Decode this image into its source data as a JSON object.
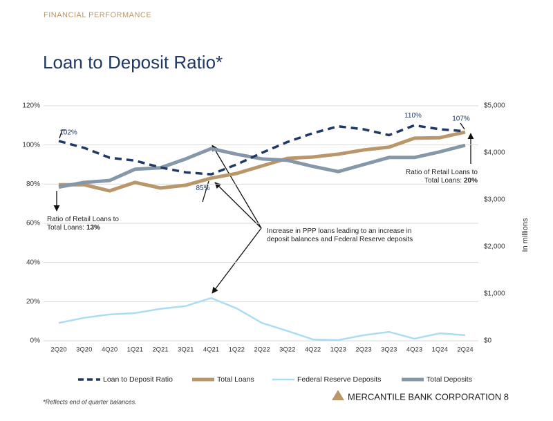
{
  "header": "FINANCIAL PERFORMANCE",
  "title": "Loan to Deposit Ratio*",
  "footnote": "*Reflects end of quarter balances.",
  "company": "MERCANTILE BANK CORPORATION",
  "page_number": "8",
  "chart_data": {
    "type": "line",
    "categories": [
      "2Q20",
      "3Q20",
      "4Q20",
      "1Q21",
      "2Q21",
      "3Q21",
      "4Q21",
      "1Q22",
      "2Q22",
      "3Q22",
      "4Q22",
      "1Q23",
      "2Q23",
      "3Q23",
      "4Q23",
      "1Q24",
      "2Q24"
    ],
    "ylim": [
      0,
      120
    ],
    "yticks": [
      {
        "value": 0,
        "label": "0%"
      },
      {
        "value": 20,
        "label": "20%"
      },
      {
        "value": 40,
        "label": "40%"
      },
      {
        "value": 60,
        "label": "60%"
      },
      {
        "value": 80,
        "label": "80%"
      },
      {
        "value": 100,
        "label": "100%"
      },
      {
        "value": 120,
        "label": "120%"
      }
    ],
    "y2lim": [
      0,
      5000
    ],
    "y2ticks": [
      {
        "value": 0,
        "label": "$0"
      },
      {
        "value": 1000,
        "label": "$1,000"
      },
      {
        "value": 2000,
        "label": "$2,000"
      },
      {
        "value": 3000,
        "label": "$3,000"
      },
      {
        "value": 4000,
        "label": "$4,000"
      },
      {
        "value": 5000,
        "label": "$5,000"
      }
    ],
    "y2label": "In millions",
    "grid": true,
    "series": [
      {
        "name": "Loan to Deposit Ratio",
        "color": "#1f3864",
        "line_style": "dashed",
        "values": [
          102,
          98.5,
          93.5,
          92,
          88.5,
          86,
          85,
          90,
          96,
          101.5,
          106,
          109.5,
          108,
          105,
          110,
          108,
          107
        ],
        "value_labels": [
          "102%",
          null,
          null,
          null,
          null,
          null,
          "85%",
          null,
          null,
          null,
          null,
          null,
          null,
          null,
          "110%",
          null,
          "107%"
        ]
      },
      {
        "name": "Total Loans",
        "color": "#b9976b",
        "axis": "y2",
        "values": [
          3320,
          3320,
          3190,
          3370,
          3250,
          3310,
          3460,
          3560,
          3720,
          3880,
          3910,
          3970,
          4060,
          4120,
          4310,
          4320,
          4440
        ]
      },
      {
        "name": "Federal Reserve Deposits",
        "color": "#acdcf2",
        "axis": "y2",
        "values": [
          380,
          490,
          560,
          590,
          680,
          740,
          910,
          690,
          380,
          210,
          30,
          15,
          120,
          190,
          45,
          160,
          120
        ]
      },
      {
        "name": "Total Deposits",
        "color": "#8597a8",
        "axis": "y2",
        "values": [
          3270,
          3370,
          3410,
          3650,
          3680,
          3870,
          4090,
          3970,
          3870,
          3840,
          3710,
          3600,
          3750,
          3900,
          3900,
          4020,
          4160
        ]
      }
    ],
    "annotations": [
      {
        "lines": [
          "Ratio of Retail Loans to",
          "Total Loans:"
        ],
        "highlight": "13%"
      },
      {
        "lines": [
          "Ratio of Retail Loans to",
          "Total Loans:"
        ],
        "highlight": "20%"
      },
      {
        "lines": [
          "Increase in PPP loans leading to an increase in",
          "deposit balances and Federal Reserve deposits"
        ]
      }
    ]
  }
}
